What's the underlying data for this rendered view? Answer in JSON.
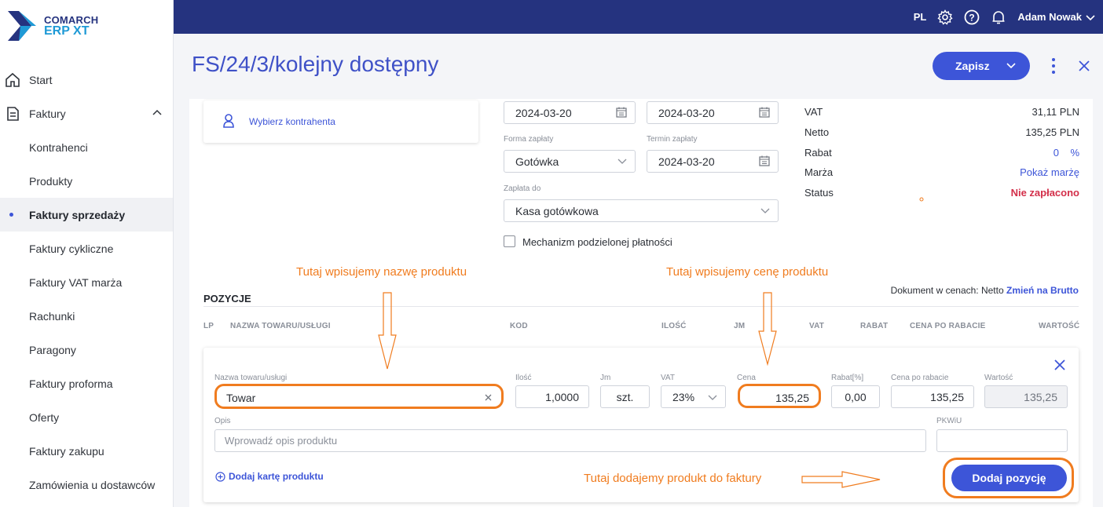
{
  "brand": {
    "line1": "COMARCH",
    "line2": "ERP XT"
  },
  "topbar": {
    "lang": "PL",
    "user": "Adam Nowak"
  },
  "sidebar": {
    "items": [
      {
        "label": "Start"
      },
      {
        "label": "Faktury"
      },
      {
        "label": "Kontrahenci"
      },
      {
        "label": "Produkty"
      },
      {
        "label": "Faktury sprzedaży"
      },
      {
        "label": "Faktury cykliczne"
      },
      {
        "label": "Faktury VAT marża"
      },
      {
        "label": "Rachunki"
      },
      {
        "label": "Paragony"
      },
      {
        "label": "Faktury proforma"
      },
      {
        "label": "Oferty"
      },
      {
        "label": "Faktury zakupu"
      },
      {
        "label": "Zamówienia u dostawców"
      }
    ]
  },
  "header": {
    "title": "FS/24/3/kolejny dostępny",
    "save_label": "Zapisz"
  },
  "contractor": {
    "label": "Wybierz kontrahenta"
  },
  "dates": {
    "issue": "2024-03-20",
    "sale": "2024-03-20"
  },
  "payment": {
    "method_label": "Forma zapłaty",
    "method": "Gotówka",
    "due_label": "Termin zapłaty",
    "due": "2024-03-20",
    "to_label": "Zapłata do",
    "to": "Kasa gotówkowa",
    "split_label": "Mechanizm podzielonej płatności"
  },
  "summary": {
    "vat_label": "VAT",
    "vat": "31,11 PLN",
    "net_label": "Netto",
    "net": "135,25 PLN",
    "discount_label": "Rabat",
    "discount": "0",
    "discount_unit": "%",
    "margin_label": "Marża",
    "margin": "Pokaż marżę",
    "status_label": "Status",
    "status": "Nie zapłacono"
  },
  "colors": {
    "accent": "#3d55d8",
    "topbar": "#25337f",
    "status_unpaid": "#d32f4a",
    "annotation": "#f07c1f"
  },
  "positions": {
    "title": "POZYCJE",
    "doc_prices_text": "Dokument w cenach: Netto",
    "doc_prices_link": "Zmień na Brutto",
    "headers": {
      "lp": "LP",
      "name": "NAZWA TOWARU/USŁUGI",
      "code": "KOD",
      "qty": "ILOŚĆ",
      "unit": "JM",
      "vat": "VAT",
      "discount": "RABAT",
      "price_after": "CENA PO RABACIE",
      "value": "WARTOŚĆ"
    }
  },
  "editor": {
    "name_label": "Nazwa towaru/usługi",
    "name": "Towar",
    "qty_label": "Ilość",
    "qty": "1,0000",
    "unit_label": "Jm",
    "unit": "szt.",
    "vat_label": "VAT",
    "vat": "23%",
    "price_label": "Cena",
    "price": "135,25",
    "discount_label": "Rabat[%]",
    "discount": "0,00",
    "price_after_label": "Cena po rabacie",
    "price_after": "135,25",
    "value_label": "Wartość",
    "value": "135,25",
    "desc_label": "Opis",
    "desc_placeholder": "Wprowadź opis produktu",
    "pkwiu_label": "PKWiU",
    "add_card_label": "Dodaj kartę produktu",
    "add_button": "Dodaj pozycję"
  },
  "annotations": {
    "name_note": "Tutaj wpisujemy nazwę produktu",
    "price_note": "Tutaj wpisujemy cenę produktu",
    "add_note": "Tutaj dodajemy produkt do faktury"
  }
}
